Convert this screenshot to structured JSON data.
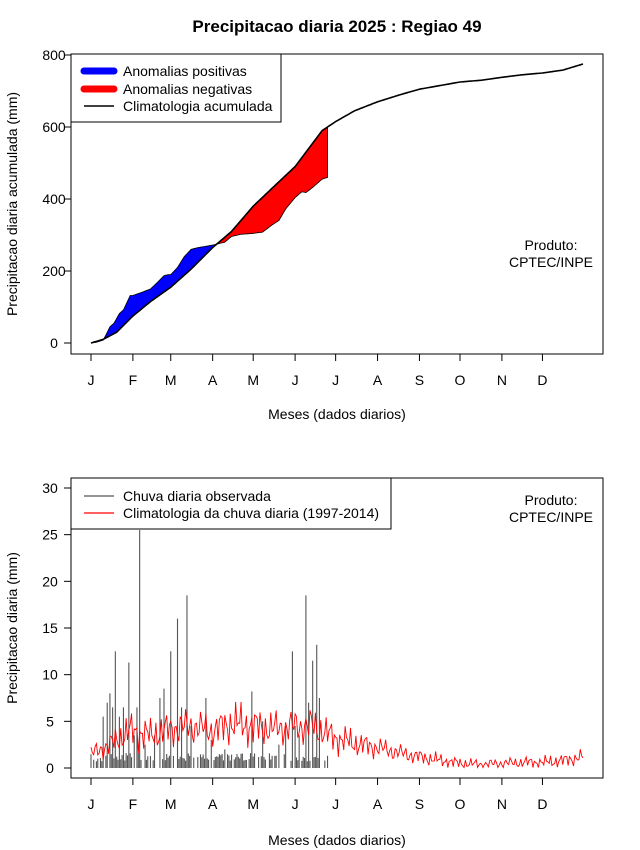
{
  "title": "Precipitacao diaria 2025 : Regiao 49",
  "months": [
    "J",
    "F",
    "M",
    "A",
    "M",
    "J",
    "J",
    "A",
    "S",
    "O",
    "N",
    "D"
  ],
  "produto": [
    "Produto:",
    "CPTEC/INPE"
  ],
  "colors": {
    "positive": "#0000ff",
    "negative": "#ff0000",
    "climatology": "#000000",
    "observed": "#555555",
    "clim_daily": "#ff0000"
  },
  "chart_data": [
    {
      "type": "area",
      "xlabel": "Meses (dados diarios)",
      "ylabel": "Precipitacao diaria acumulada (mm)",
      "xlim": [
        1,
        365
      ],
      "ylim": [
        0,
        800
      ],
      "yticks": [
        0,
        200,
        400,
        600,
        800
      ],
      "legend": [
        "Anomalias positivas",
        "Anomalias negativas",
        "Climatologia acumulada"
      ],
      "legend_position": "top-left",
      "climatology_accumulated": {
        "day": [
          1,
          10,
          20,
          32,
          45,
          60,
          75,
          91,
          105,
          121,
          135,
          152,
          162,
          172,
          182,
          196,
          213,
          230,
          244,
          259,
          274,
          290,
          305,
          320,
          335,
          350,
          365
        ],
        "mm": [
          0,
          10,
          30,
          75,
          115,
          155,
          205,
          265,
          310,
          380,
          430,
          490,
          540,
          590,
          615,
          645,
          670,
          690,
          705,
          715,
          725,
          730,
          738,
          745,
          750,
          758,
          775
        ]
      },
      "observed_accumulated": {
        "day": [
          1,
          5,
          10,
          12,
          15,
          18,
          22,
          25,
          30,
          32,
          38,
          45,
          50,
          55,
          58,
          60,
          65,
          70,
          75,
          80,
          85,
          91,
          100,
          105,
          112,
          120,
          128,
          135,
          140,
          145,
          152,
          157,
          160,
          165,
          172,
          176
        ],
        "mm": [
          0,
          2,
          8,
          22,
          45,
          55,
          82,
          92,
          132,
          132,
          140,
          150,
          168,
          187,
          190,
          190,
          210,
          240,
          260,
          265,
          268,
          272,
          280,
          296,
          302,
          304,
          308,
          328,
          340,
          372,
          404,
          420,
          418,
          432,
          455,
          460
        ]
      }
    },
    {
      "type": "bar",
      "xlabel": "Meses (dados diarios)",
      "ylabel": "Precipitacao diaria (mm)",
      "xlim": [
        1,
        365
      ],
      "ylim": [
        0,
        30
      ],
      "yticks": [
        0,
        5,
        10,
        15,
        20,
        25,
        30
      ],
      "legend": [
        "Chuva diaria observada",
        "Climatologia da chuva diaria (1997-2014)"
      ],
      "legend_position": "top-left",
      "observed_daily_peaks": {
        "day": [
          10,
          13,
          15,
          17,
          19,
          22,
          25,
          29,
          33,
          35,
          37,
          41,
          48,
          52,
          55,
          57,
          60,
          65,
          68,
          72,
          75,
          86,
          90,
          100,
          110,
          120,
          128,
          140,
          145,
          150,
          152,
          155,
          160,
          162,
          165,
          168,
          170
        ],
        "mm": [
          5.5,
          7,
          8,
          6.5,
          12.5,
          5.5,
          6.5,
          11.3,
          3.5,
          6.5,
          25.5,
          2.5,
          3.5,
          7.5,
          8.5,
          1.5,
          12.5,
          16.0,
          6.5,
          18.5,
          4.5,
          7.5,
          3.0,
          2.0,
          1.2,
          8.2,
          5.0,
          2.5,
          4.5,
          12.5,
          4.5,
          3.5,
          18.5,
          7.0,
          11.5,
          13.2,
          7.5
        ]
      },
      "climatology_daily": {
        "day": [
          1,
          15,
          30,
          45,
          60,
          75,
          91,
          105,
          121,
          135,
          152,
          165,
          182,
          200,
          213,
          230,
          244,
          260,
          274,
          290,
          305,
          320,
          335,
          350,
          365
        ],
        "mm": [
          1.5,
          2.5,
          4.0,
          3.5,
          4.2,
          4.5,
          4.0,
          4.8,
          4.5,
          4.2,
          4.5,
          4.5,
          3.2,
          2.5,
          2.2,
          1.6,
          1.2,
          0.8,
          0.5,
          0.4,
          0.5,
          0.6,
          0.6,
          0.8,
          1.2
        ]
      }
    }
  ]
}
